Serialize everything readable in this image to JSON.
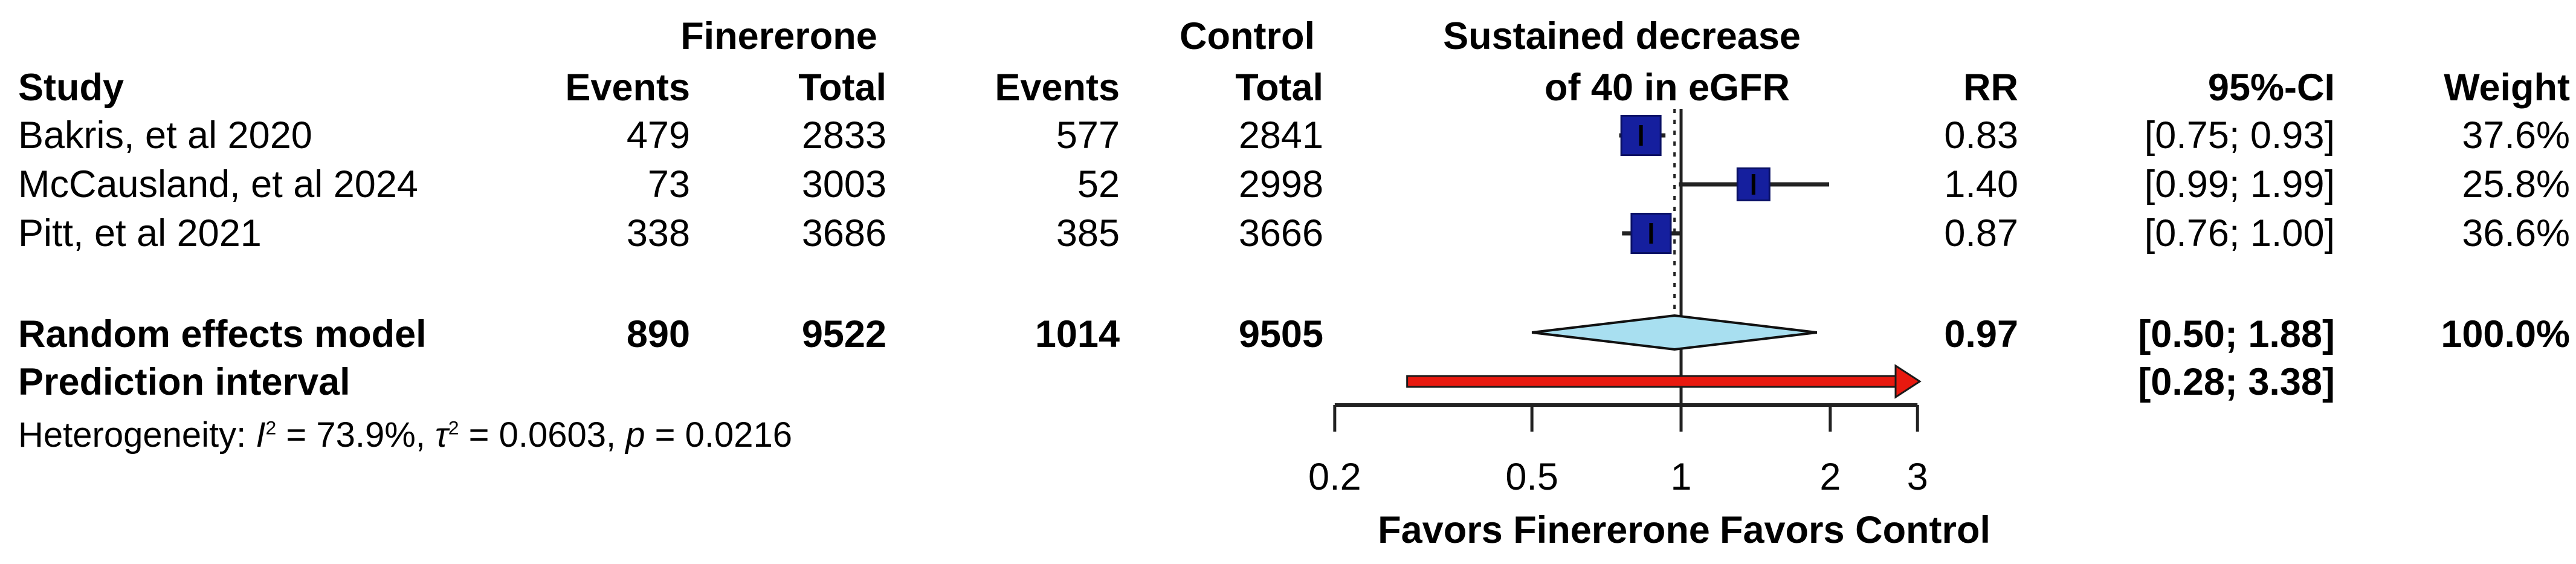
{
  "chart_data": {
    "type": "forest",
    "x_scale": "log",
    "effect_measure": "RR",
    "x_ticks": [
      0.2,
      0.5,
      1,
      2,
      3
    ],
    "axis_range": [
      0.2,
      3
    ],
    "favors_left": "Favors Finererone",
    "favors_right": "Favors Control",
    "headers": {
      "group1": "Finererone",
      "group2": "Control",
      "outcome_line1": "Sustained decrease",
      "outcome_line2": "of 40 in eGFR",
      "study": "Study",
      "events1": "Events",
      "total1": "Total",
      "events2": "Events",
      "total2": "Total",
      "rr": "RR",
      "ci": "95%-CI",
      "weight": "Weight"
    },
    "studies": [
      {
        "name": "Bakris, et al 2020",
        "fin_events": "479",
        "fin_total": "2833",
        "ctrl_events": "577",
        "ctrl_total": "2841",
        "rr": 0.83,
        "ci_low": 0.75,
        "ci_high": 0.93,
        "rr_label": "0.83",
        "ci_label": "[0.75; 0.93]",
        "weight": 37.6,
        "weight_label": "37.6%"
      },
      {
        "name": "McCausland, et al 2024",
        "fin_events": "73",
        "fin_total": "3003",
        "ctrl_events": "52",
        "ctrl_total": "2998",
        "rr": 1.4,
        "ci_low": 0.99,
        "ci_high": 1.99,
        "rr_label": "1.40",
        "ci_label": "[0.99; 1.99]",
        "weight": 25.8,
        "weight_label": "25.8%"
      },
      {
        "name": "Pitt, et al 2021",
        "fin_events": "338",
        "fin_total": "3686",
        "ctrl_events": "385",
        "ctrl_total": "3666",
        "rr": 0.87,
        "ci_low": 0.76,
        "ci_high": 1.0,
        "rr_label": "0.87",
        "ci_label": "[0.76; 1.00]",
        "weight": 36.6,
        "weight_label": "36.6%"
      }
    ],
    "pooled": {
      "name": "Random effects model",
      "fin_events": "890",
      "fin_total": "9522",
      "ctrl_events": "1014",
      "ctrl_total": "9505",
      "rr": 0.97,
      "ci_low": 0.5,
      "ci_high": 1.88,
      "rr_label": "0.97",
      "ci_label": "[0.50; 1.88]",
      "weight_label": "100.0%"
    },
    "prediction": {
      "name": "Prediction interval",
      "ci_low": 0.28,
      "ci_high": 3.38,
      "ci_label": "[0.28; 3.38]"
    },
    "heterogeneity_parts": [
      {
        "t": "Heterogeneity: "
      },
      {
        "t": "I",
        "s": "it"
      },
      {
        "t": "2",
        "s": "sup"
      },
      {
        "t": " = 73.9%, "
      },
      {
        "t": "τ",
        "s": "it"
      },
      {
        "t": "2",
        "s": "sup"
      },
      {
        "t": " = 0.0603, "
      },
      {
        "t": "p",
        "s": "it"
      },
      {
        "t": " = 0.0216"
      }
    ],
    "colors": {
      "square": "#151f9e",
      "square_border": "#0a1166",
      "diamond": "#a8dff0",
      "diamond_border": "#111111",
      "arrow": "#e8190f",
      "arrow_border": "#1a1a1a",
      "line": "#222222"
    }
  }
}
